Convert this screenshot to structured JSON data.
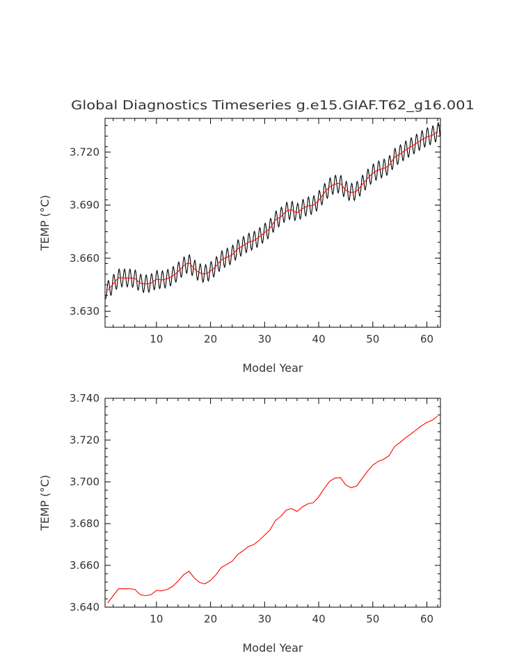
{
  "chart_data": [
    {
      "type": "line",
      "title": "Global Diagnostics Timeseries g.e15.GIAF.T62_g16.001",
      "xlabel": "Model Year",
      "ylabel": "TEMP (°C)",
      "xlim": [
        0.5,
        62.5
      ],
      "ylim": [
        3.621,
        3.739
      ],
      "x_ticks": [
        10,
        20,
        30,
        40,
        50,
        60
      ],
      "x_tick_labels": [
        "10",
        "20",
        "30",
        "40",
        "50",
        "60"
      ],
      "y_ticks": [
        3.63,
        3.66,
        3.69,
        3.72
      ],
      "y_tick_labels": [
        "3.630",
        "3.660",
        "3.690",
        "3.720"
      ],
      "grid": false,
      "series": [
        {
          "color": "#000000",
          "style": "monthly",
          "seasonal_amplitude": 0.005,
          "base": "annual_mean"
        },
        {
          "color": "#ff0000",
          "style": "smoothed",
          "base": "annual_mean"
        }
      ]
    },
    {
      "type": "line",
      "title": "",
      "xlabel": "Model Year",
      "ylabel": "TEMP (°C)",
      "xlim": [
        0.5,
        62.5
      ],
      "ylim": [
        3.64,
        3.74
      ],
      "x_ticks": [
        10,
        20,
        30,
        40,
        50,
        60
      ],
      "x_tick_labels": [
        "10",
        "20",
        "30",
        "40",
        "50",
        "60"
      ],
      "y_ticks": [
        3.64,
        3.66,
        3.68,
        3.7,
        3.72,
        3.74
      ],
      "y_tick_labels": [
        "3.640",
        "3.660",
        "3.680",
        "3.700",
        "3.720",
        "3.740"
      ],
      "grid": false,
      "series": [
        {
          "color": "#ff0000",
          "style": "annual"
        }
      ]
    }
  ],
  "annual_mean": {
    "x": [
      1,
      2,
      3,
      4,
      5,
      6,
      7,
      8,
      9,
      10,
      11,
      12,
      13,
      14,
      15,
      16,
      17,
      18,
      19,
      20,
      21,
      22,
      23,
      24,
      25,
      26,
      27,
      28,
      29,
      30,
      31,
      32,
      33,
      34,
      35,
      36,
      37,
      38,
      39,
      40,
      41,
      42,
      43,
      44,
      45,
      46,
      47,
      48,
      49,
      50,
      51,
      52,
      53,
      54,
      55,
      56,
      57,
      58,
      59,
      60,
      61,
      62
    ],
    "y": [
      3.642,
      3.6455,
      3.6488,
      3.6488,
      3.6488,
      3.6485,
      3.646,
      3.6455,
      3.646,
      3.648,
      3.6478,
      3.6485,
      3.65,
      3.6525,
      3.6555,
      3.6572,
      3.654,
      3.6518,
      3.6512,
      3.6528,
      3.6555,
      3.659,
      3.6605,
      3.662,
      3.6652,
      3.667,
      3.669,
      3.67,
      3.672,
      3.6745,
      3.677,
      3.6815,
      3.6835,
      3.6865,
      3.6872,
      3.6858,
      3.688,
      3.6895,
      3.69,
      3.6928,
      3.6968,
      3.7002,
      3.7018,
      3.702,
      3.6985,
      3.6972,
      3.698,
      3.7015,
      3.705,
      3.708,
      3.7098,
      3.7108,
      3.7125,
      3.7168,
      3.7188,
      3.721,
      3.7228,
      3.7248,
      3.7268,
      3.7285,
      3.7295,
      3.7315
    ]
  }
}
